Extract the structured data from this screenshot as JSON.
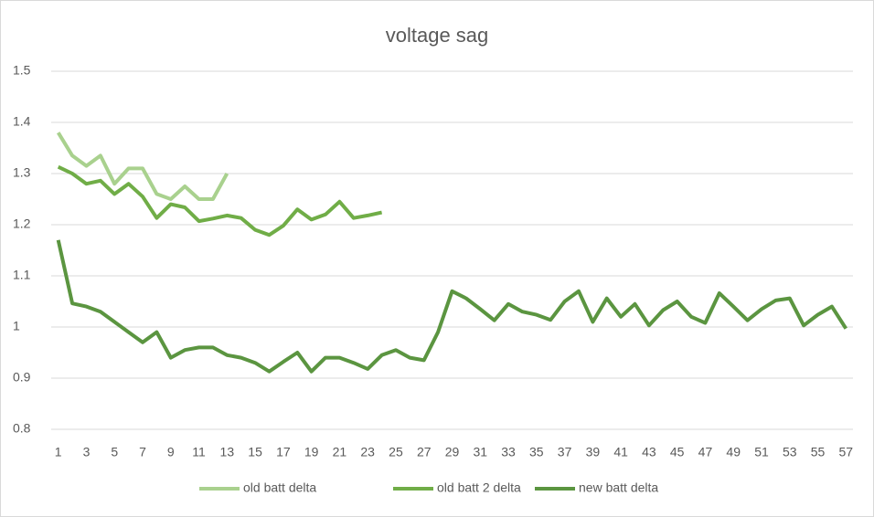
{
  "chart_data": {
    "type": "line",
    "title": "voltage sag",
    "categories": [
      1,
      null,
      3,
      null,
      5,
      null,
      7,
      null,
      9,
      null,
      11,
      null,
      13,
      null,
      15,
      null,
      17,
      null,
      19,
      null,
      21,
      null,
      23,
      null,
      25,
      null,
      27,
      null,
      29,
      null,
      31,
      null,
      33,
      null,
      35,
      null,
      37,
      null,
      39,
      null,
      41,
      null,
      43,
      null,
      45,
      null,
      47,
      null,
      49,
      null,
      51,
      null,
      53,
      null,
      55,
      null,
      57
    ],
    "series": [
      {
        "name": "old batt delta",
        "color": "#a9d18e",
        "values": [
          1.38,
          1.335,
          1.315,
          1.335,
          1.28,
          1.31,
          1.31,
          1.26,
          1.25,
          1.275,
          1.25,
          1.25,
          1.3,
          null,
          null,
          null,
          null,
          null,
          null,
          null,
          null,
          null,
          null,
          null,
          null,
          null,
          null,
          null,
          null,
          null,
          null,
          null,
          null,
          null,
          null,
          null,
          null,
          null,
          null,
          null,
          null,
          null,
          null,
          null,
          null,
          null,
          null,
          null,
          null,
          null,
          null,
          null,
          null,
          null,
          null,
          null,
          null
        ]
      },
      {
        "name": "old batt 2 delta",
        "color": "#70ad47",
        "values": [
          1.313,
          1.3,
          1.28,
          1.286,
          1.26,
          1.28,
          1.255,
          1.213,
          1.24,
          1.234,
          1.207,
          1.212,
          1.218,
          1.213,
          1.19,
          1.18,
          1.198,
          1.23,
          1.21,
          1.22,
          1.245,
          1.213,
          1.218,
          1.224,
          null,
          null,
          null,
          null,
          null,
          null,
          null,
          null,
          null,
          null,
          null,
          null,
          null,
          null,
          null,
          null,
          null,
          null,
          null,
          null,
          null,
          null,
          null,
          null,
          null,
          null,
          null,
          null,
          null,
          null,
          null,
          null,
          null
        ]
      },
      {
        "name": "new batt delta",
        "color": "#5b9540",
        "values": [
          1.17,
          1.046,
          1.04,
          1.03,
          1.01,
          0.99,
          0.97,
          0.99,
          0.94,
          0.955,
          0.96,
          0.96,
          0.945,
          0.94,
          0.93,
          0.913,
          0.932,
          0.95,
          0.913,
          0.94,
          0.94,
          0.93,
          0.918,
          0.945,
          0.955,
          0.94,
          0.935,
          0.99,
          1.07,
          1.056,
          1.035,
          1.013,
          1.045,
          1.03,
          1.024,
          1.014,
          1.05,
          1.07,
          1.01,
          1.056,
          1.02,
          1.045,
          1.003,
          1.033,
          1.05,
          1.02,
          1.008,
          1.066,
          1.04,
          1.013,
          1.035,
          1.052,
          1.056,
          1.003,
          1.024,
          1.04,
          0.997
        ]
      }
    ],
    "ylim": [
      0.8,
      1.5
    ],
    "yticks": [
      0.8,
      0.9,
      1,
      1.1,
      1.2,
      1.3,
      1.4,
      1.5
    ],
    "grid": true,
    "legend": "bottom"
  }
}
